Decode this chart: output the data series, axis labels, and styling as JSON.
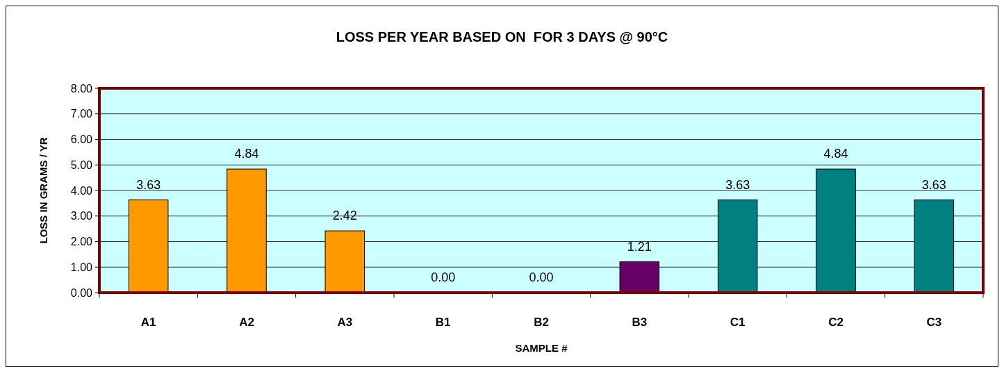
{
  "chart_data": {
    "type": "bar",
    "title": "LOSS PER YEAR BASED ON  FOR 3 DAYS @ 90°C",
    "xlabel": "SAMPLE #",
    "ylabel": "LOSS IN GRAMS / YR",
    "categories": [
      "A1",
      "A2",
      "A3",
      "B1",
      "B2",
      "B3",
      "C1",
      "C2",
      "C3"
    ],
    "values": [
      3.63,
      4.84,
      2.42,
      0,
      0,
      1.21,
      3.63,
      4.84,
      3.63
    ],
    "colors": [
      "#ff9900",
      "#ff9900",
      "#ff9900",
      "#ff9900",
      "#ff9900",
      "#660066",
      "#008080",
      "#008080",
      "#008080"
    ],
    "value_labels": [
      "3.63",
      "4.84",
      "2.42",
      "0.00",
      "0.00",
      "1.21",
      "3.63",
      "4.84",
      "3.63"
    ],
    "ylim": [
      0,
      8
    ],
    "yticks": [
      {
        "value": 0,
        "label": "0.00"
      },
      {
        "value": 1,
        "label": "1.00"
      },
      {
        "value": 2,
        "label": "2.00"
      },
      {
        "value": 3,
        "label": "3.00"
      },
      {
        "value": 4,
        "label": "4.00"
      },
      {
        "value": 5,
        "label": "5.00"
      },
      {
        "value": 6,
        "label": "6.00"
      },
      {
        "value": 7,
        "label": "7.00"
      },
      {
        "value": 8,
        "label": "8.00"
      }
    ],
    "grid": "y"
  }
}
